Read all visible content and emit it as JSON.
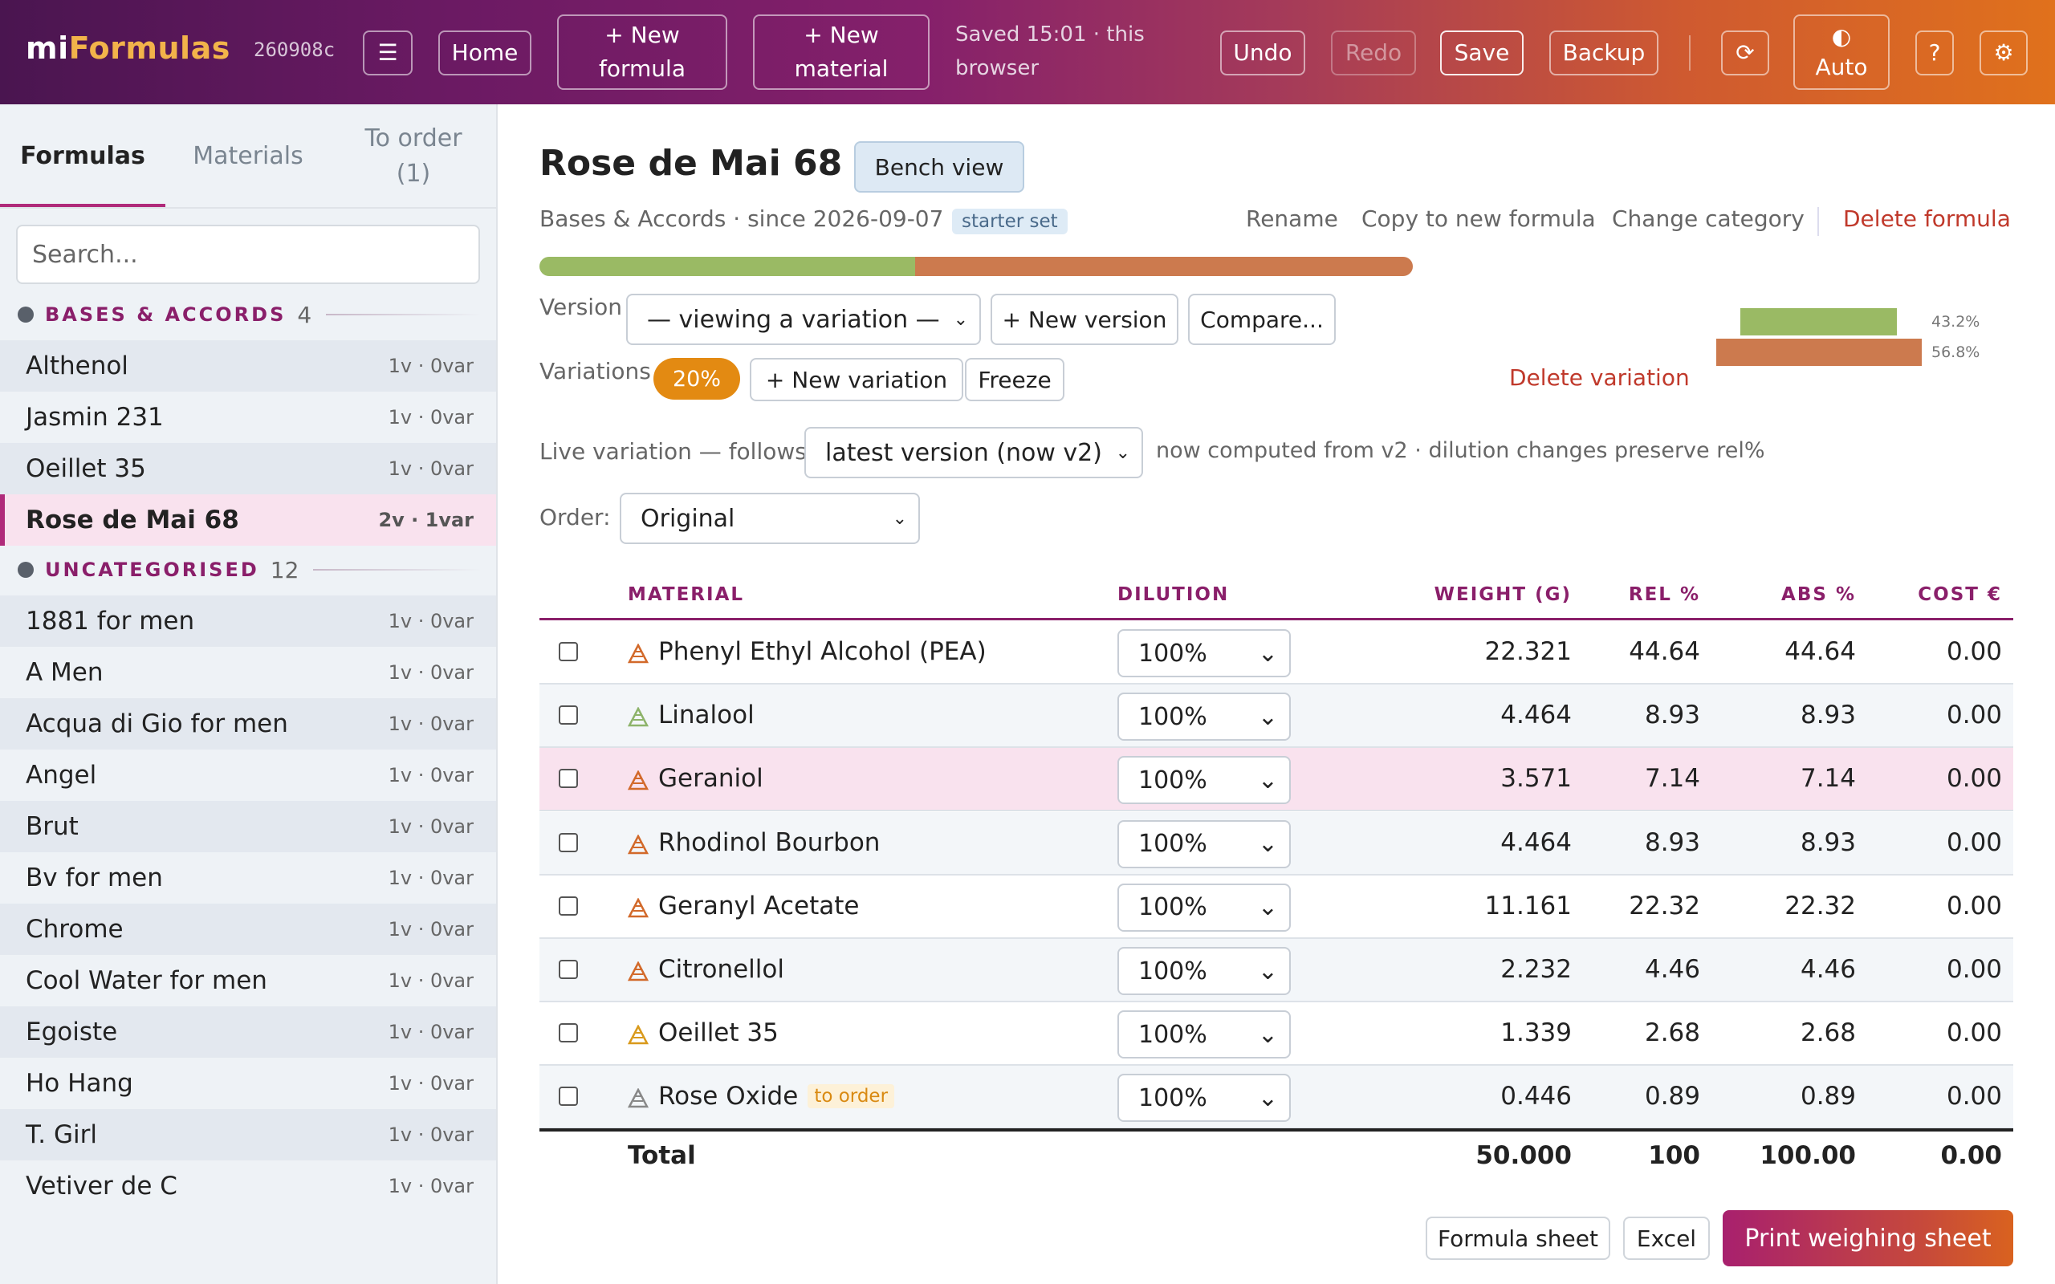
{
  "header": {
    "logo_part1": "mi",
    "logo_part2": "Formulas",
    "hash": "260908c",
    "menu_icon": "☰",
    "home": "Home",
    "new_formula": "+ New formula",
    "new_material": "+ New material",
    "saved_status": "Saved 15:01 · this browser",
    "undo": "Undo",
    "redo": "Redo",
    "save": "Save",
    "backup": "Backup",
    "refresh_icon": "⟳",
    "theme_icon": "◐",
    "theme_label": "Auto",
    "help": "?",
    "settings_icon": "⚙"
  },
  "sidebar": {
    "tabs": [
      "Formulas",
      "Materials",
      "To order (1)"
    ],
    "search_placeholder": "Search...",
    "categories": [
      {
        "name": "BASES & ACCORDS",
        "count": "4",
        "items": [
          {
            "name": "Althenol",
            "meta": "1v · 0var"
          },
          {
            "name": "Jasmin 231",
            "meta": "1v · 0var"
          },
          {
            "name": "Oeillet 35",
            "meta": "1v · 0var"
          },
          {
            "name": "Rose de Mai 68",
            "meta": "2v · 1var"
          }
        ]
      },
      {
        "name": "UNCATEGORISED",
        "count": "12",
        "items": [
          {
            "name": "1881 for men",
            "meta": "1v · 0var"
          },
          {
            "name": "A Men",
            "meta": "1v · 0var"
          },
          {
            "name": "Acqua di Gio for men",
            "meta": "1v · 0var"
          },
          {
            "name": "Angel",
            "meta": "1v · 0var"
          },
          {
            "name": "Brut",
            "meta": "1v · 0var"
          },
          {
            "name": "Bv for men",
            "meta": "1v · 0var"
          },
          {
            "name": "Chrome",
            "meta": "1v · 0var"
          },
          {
            "name": "Cool Water for men",
            "meta": "1v · 0var"
          },
          {
            "name": "Egoiste",
            "meta": "1v · 0var"
          },
          {
            "name": "Ho Hang",
            "meta": "1v · 0var"
          },
          {
            "name": "T. Girl",
            "meta": "1v · 0var"
          },
          {
            "name": "Vetiver de C",
            "meta": "1v · 0var"
          }
        ]
      }
    ]
  },
  "formula": {
    "title": "Rose de Mai 68",
    "bench_view": "Bench view",
    "subtitle": "Bases & Accords · since 2026-09-07 ·",
    "tag": "starter set",
    "links": {
      "rename": "Rename",
      "copy": "Copy to new formula",
      "change_category": "Change category",
      "delete": "Delete formula"
    },
    "balance": {
      "green_fraction": 0.432,
      "orange_fraction": 0.568,
      "green_label": "43.2%",
      "orange_label": "56.8%",
      "green_color": "#9aba64",
      "orange_color": "#cc7a4e"
    },
    "version_label": "Version",
    "version_select": "— viewing a variation —",
    "new_version": "+ New version",
    "compare": "Compare...",
    "variations_label": "Variations",
    "variation_pill": "20%",
    "new_variation": "+ New variation",
    "freeze": "Freeze",
    "delete_variation": "Delete variation",
    "live_label": "Live variation — follows",
    "live_select": "latest version (now v2)",
    "live_note": "now computed from v2 · dilution changes preserve rel%",
    "order_label": "Order:",
    "order_select": "Original"
  },
  "table": {
    "headers": {
      "material": "MATERIAL",
      "dilution": "DILUTION",
      "weight": "WEIGHT (G)",
      "rel": "REL %",
      "abs": "ABS %",
      "cost": "COST €"
    },
    "rows": [
      {
        "name": "Phenyl Ethyl Alcohol (PEA)",
        "dilution": "100%",
        "weight": "22.321",
        "rel": "44.64",
        "abs": "44.64",
        "cost": "0.00",
        "note_color": "#d2692a",
        "tag": ""
      },
      {
        "name": "Linalool",
        "dilution": "100%",
        "weight": "4.464",
        "rel": "8.93",
        "abs": "8.93",
        "cost": "0.00",
        "note_color": "#8db36a",
        "tag": ""
      },
      {
        "name": "Geraniol",
        "dilution": "100%",
        "weight": "3.571",
        "rel": "7.14",
        "abs": "7.14",
        "cost": "0.00",
        "note_color": "#d2692a",
        "tag": ""
      },
      {
        "name": "Rhodinol Bourbon",
        "dilution": "100%",
        "weight": "4.464",
        "rel": "8.93",
        "abs": "8.93",
        "cost": "0.00",
        "note_color": "#d2692a",
        "tag": ""
      },
      {
        "name": "Geranyl Acetate",
        "dilution": "100%",
        "weight": "11.161",
        "rel": "22.32",
        "abs": "22.32",
        "cost": "0.00",
        "note_color": "#d2692a",
        "tag": ""
      },
      {
        "name": "Citronellol",
        "dilution": "100%",
        "weight": "2.232",
        "rel": "4.46",
        "abs": "4.46",
        "cost": "0.00",
        "note_color": "#d2692a",
        "tag": ""
      },
      {
        "name": "Oeillet 35",
        "dilution": "100%",
        "weight": "1.339",
        "rel": "2.68",
        "abs": "2.68",
        "cost": "0.00",
        "note_color": "#d99a1c",
        "tag": ""
      },
      {
        "name": "Rose Oxide",
        "dilution": "100%",
        "weight": "0.446",
        "rel": "0.89",
        "abs": "0.89",
        "cost": "0.00",
        "note_color": "#888888",
        "tag": "to order"
      }
    ],
    "total": {
      "label": "Total",
      "weight": "50.000",
      "rel": "100",
      "abs": "100.00",
      "cost": "0.00"
    }
  },
  "footer": {
    "formula_sheet": "Formula sheet",
    "excel": "Excel",
    "print": "Print weighing sheet"
  }
}
